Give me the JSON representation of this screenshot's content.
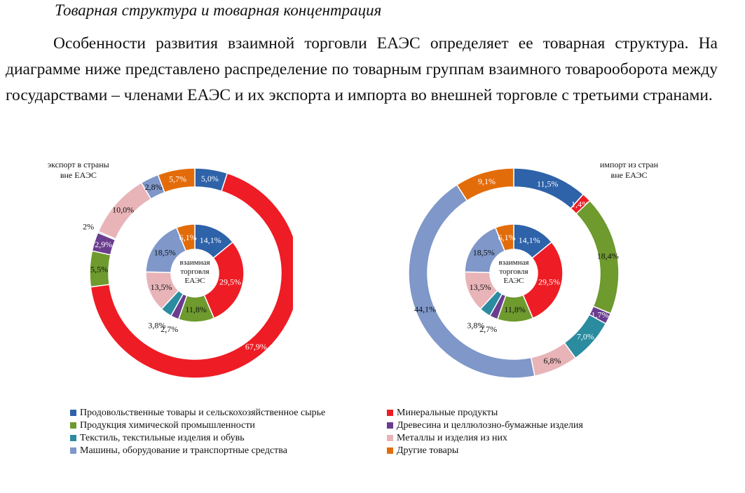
{
  "heading": "Товарная структура и товарная концентрация",
  "paragraph": "Особенности развития взаимной торговли ЕАЭС определяет ее товарная структура. На диаграмме ниже представлено распределение по товарным группам взаимного товарооборота между государствами – членами ЕАЭС и их экспорта и импорта во внешней торговле с третьими странами.",
  "chart_data": [
    {
      "type": "donut",
      "center_label": "взаимная торговля ЕАЭС",
      "inner_ring": {
        "name": "взаимной торговли ЕАЭС",
        "values": [
          14.1,
          29.5,
          11.8,
          2.7,
          3.8,
          13.5,
          18.5,
          6.1
        ],
        "labels": [
          "14,1%",
          "29,5%",
          "11,8%",
          "2,7%",
          "3,8%",
          "13,5%",
          "18,5%",
          "6,1%"
        ]
      },
      "outer_ring": {
        "name": "экспорт в страны вне ЕАЭС",
        "values": [
          5.0,
          67.9,
          5.5,
          2.9,
          0.2,
          10.0,
          2.8,
          5.7
        ],
        "labels": [
          "5,0%",
          "67,9%",
          "5,5%",
          "2,9%",
          "0,2%",
          "10,0%",
          "2,8%",
          "5,7%"
        ]
      }
    },
    {
      "type": "donut",
      "center_label": "взаимная торговля ЕАЭС",
      "inner_ring": {
        "name": "взаимной торговли ЕАЭС",
        "values": [
          14.1,
          29.5,
          11.8,
          2.7,
          3.8,
          13.5,
          18.5,
          6.1
        ],
        "labels": [
          "14,1%",
          "29,5%",
          "11,8%",
          "2,7%",
          "3,8%",
          "13,5%",
          "18,5%",
          "6,1%"
        ]
      },
      "outer_ring": {
        "name": "импорт из стран вне ЕАЭС",
        "values": [
          11.5,
          1.4,
          18.4,
          1.7,
          7.0,
          6.8,
          44.1,
          9.1
        ],
        "labels": [
          "11,5%",
          "1,4%",
          "18,4%",
          "1,7%",
          "7,0%",
          "6,8%",
          "44,1%",
          "9,1%"
        ]
      }
    }
  ],
  "categories": [
    "Продовольственные товары и сельскохозяйственное сырье",
    "Минеральные продукты",
    "Продукция химической промышленности",
    "Древесина и целлюлозно-бумажные изделия",
    "Текстиль, текстильные изделия и обувь",
    "Металлы и изделия из них",
    "Машины, оборудование и транспортные средства",
    "Другие товары"
  ],
  "colors": [
    "#2e62a9",
    "#ee1c24",
    "#6e9a2e",
    "#6a3d8f",
    "#2b8ca0",
    "#e8b4b8",
    "#7f97c9",
    "#e36c0a"
  ],
  "left_label": {
    "line1": "экспорт в страны",
    "line2": "вне ЕАЭС"
  },
  "right_label": {
    "line1": "импорт из стран",
    "line2": "вне ЕАЭС"
  },
  "center_lines": [
    "взаимная",
    "торговля",
    "ЕАЭС"
  ]
}
